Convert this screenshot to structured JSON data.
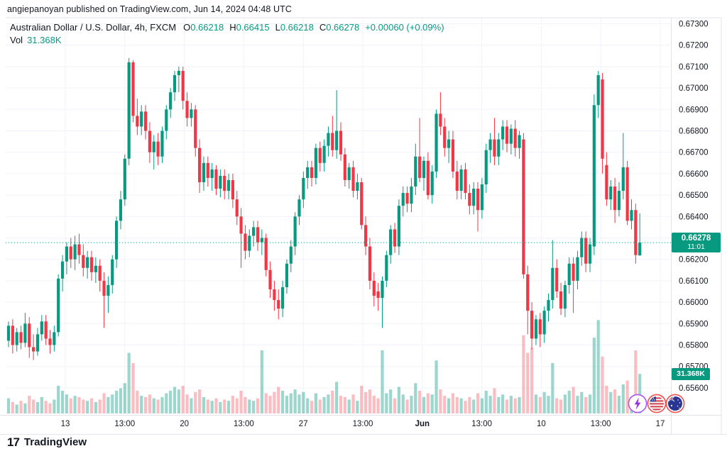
{
  "header": {
    "attribution": "angiepanoyan published on TradingView.com, Jun 14, 2024 04:48 UTC"
  },
  "legend": {
    "symbol": "Australian Dollar / U.S. Dollar, 4h, FXCM",
    "ohlc": [
      {
        "label": "O",
        "value": "0.66218"
      },
      {
        "label": "H",
        "value": "0.66415"
      },
      {
        "label": "L",
        "value": "0.66218"
      },
      {
        "label": "C",
        "value": "0.66278"
      }
    ],
    "change": "+0.00060 (+0.09%)",
    "vol_label": "Vol",
    "vol_value": "31.368K"
  },
  "price_label": {
    "price": "0.66278",
    "time": "11:01"
  },
  "volume_label": "31.368K",
  "footer": {
    "brand": "TradingView",
    "mark": "17"
  },
  "icons": {
    "event1": "lightning-icon",
    "event2": "us-flag-icon",
    "event3": "au-flag-icon"
  },
  "colors": {
    "up": "#089981",
    "down": "#f23645",
    "vol_up": "rgba(8,153,129,0.40)",
    "vol_down": "rgba(242,54,69,0.33)",
    "grid": "#f0f3fa",
    "frame": "#e0e3eb",
    "axis_text": "#131722",
    "label_bg": "#089981",
    "dotted_line": "#089981"
  },
  "chart_data": {
    "type": "candlestick+volume",
    "title": "Australian Dollar / U.S. Dollar",
    "interval": "4h",
    "exchange": "FXCM",
    "current_price": 0.66278,
    "current_time": "11:01",
    "current_volume": 31.368,
    "last": {
      "open": "0.66218",
      "high": "0.66415",
      "low": "0.66218",
      "close": "0.66278",
      "change": "+0.00060",
      "change_pct": "+0.09%",
      "volume": "31.368K"
    },
    "price_axis_ticks": [
      "0.67300",
      "0.67200",
      "0.67100",
      "0.67000",
      "0.66900",
      "0.66800",
      "0.66700",
      "0.66600",
      "0.66500",
      "0.66400",
      "0.66300",
      "0.66200",
      "0.66100",
      "0.66000",
      "0.65900",
      "0.65800",
      "0.65700",
      "0.65600"
    ],
    "time_axis_ticks": [
      "13",
      "13:00",
      "20",
      "13:00",
      "27",
      "13:00",
      "Jun",
      "13:00",
      "10",
      "13:00",
      "17"
    ],
    "ylim": [
      0.656,
      0.673
    ],
    "grid": true,
    "candles": [
      [
        0.6582,
        0.6591,
        0.6579,
        0.6589
      ],
      [
        0.6589,
        0.6592,
        0.6576,
        0.658
      ],
      [
        0.658,
        0.6588,
        0.6577,
        0.6586
      ],
      [
        0.6586,
        0.6589,
        0.6578,
        0.6581
      ],
      [
        0.6581,
        0.6595,
        0.6579,
        0.659
      ],
      [
        0.659,
        0.6593,
        0.6574,
        0.6579
      ],
      [
        0.6579,
        0.6585,
        0.6573,
        0.6577
      ],
      [
        0.6577,
        0.6588,
        0.6575,
        0.6585
      ],
      [
        0.6585,
        0.6594,
        0.6582,
        0.6591
      ],
      [
        0.6591,
        0.6594,
        0.658,
        0.6583
      ],
      [
        0.6583,
        0.6587,
        0.6576,
        0.658
      ],
      [
        0.658,
        0.6589,
        0.6577,
        0.6586
      ],
      [
        0.6586,
        0.6613,
        0.6584,
        0.6611
      ],
      [
        0.6611,
        0.6622,
        0.6605,
        0.6619
      ],
      [
        0.6619,
        0.6628,
        0.6613,
        0.6626
      ],
      [
        0.6626,
        0.663,
        0.6616,
        0.662
      ],
      [
        0.662,
        0.6631,
        0.6615,
        0.6627
      ],
      [
        0.6627,
        0.6632,
        0.6618,
        0.6622
      ],
      [
        0.6622,
        0.6627,
        0.6612,
        0.6616
      ],
      [
        0.6616,
        0.6624,
        0.6611,
        0.6621
      ],
      [
        0.6621,
        0.6624,
        0.661,
        0.6614
      ],
      [
        0.6614,
        0.6621,
        0.6609,
        0.6617
      ],
      [
        0.6617,
        0.662,
        0.6605,
        0.661
      ],
      [
        0.661,
        0.6614,
        0.6588,
        0.6603
      ],
      [
        0.6603,
        0.6612,
        0.6595,
        0.6608
      ],
      [
        0.6608,
        0.6622,
        0.6604,
        0.662
      ],
      [
        0.662,
        0.664,
        0.6616,
        0.6638
      ],
      [
        0.6638,
        0.6652,
        0.6634,
        0.6648
      ],
      [
        0.6648,
        0.6669,
        0.6645,
        0.6667
      ],
      [
        0.6667,
        0.6714,
        0.6664,
        0.6712
      ],
      [
        0.6712,
        0.6713,
        0.6684,
        0.6687
      ],
      [
        0.6687,
        0.6695,
        0.6678,
        0.6682
      ],
      [
        0.6682,
        0.6692,
        0.6678,
        0.6689
      ],
      [
        0.6689,
        0.6692,
        0.6676,
        0.668
      ],
      [
        0.668,
        0.6684,
        0.6665,
        0.667
      ],
      [
        0.667,
        0.6678,
        0.6662,
        0.6675
      ],
      [
        0.6675,
        0.6679,
        0.6664,
        0.6668
      ],
      [
        0.6668,
        0.6682,
        0.6665,
        0.668
      ],
      [
        0.668,
        0.6692,
        0.6676,
        0.669
      ],
      [
        0.669,
        0.67,
        0.6686,
        0.6698
      ],
      [
        0.6698,
        0.6708,
        0.6694,
        0.6706
      ],
      [
        0.6706,
        0.671,
        0.6698,
        0.6708
      ],
      [
        0.6708,
        0.671,
        0.669,
        0.6694
      ],
      [
        0.6694,
        0.6698,
        0.6682,
        0.6686
      ],
      [
        0.6686,
        0.6693,
        0.6682,
        0.669
      ],
      [
        0.669,
        0.6692,
        0.6668,
        0.6672
      ],
      [
        0.6672,
        0.6676,
        0.6651,
        0.6656
      ],
      [
        0.6656,
        0.6668,
        0.6652,
        0.6665
      ],
      [
        0.6665,
        0.6668,
        0.6654,
        0.6658
      ],
      [
        0.6658,
        0.6665,
        0.6652,
        0.6662
      ],
      [
        0.6662,
        0.6664,
        0.665,
        0.6653
      ],
      [
        0.6653,
        0.6662,
        0.6649,
        0.6659
      ],
      [
        0.6659,
        0.6662,
        0.6648,
        0.6652
      ],
      [
        0.6652,
        0.666,
        0.6648,
        0.6657
      ],
      [
        0.6657,
        0.666,
        0.6644,
        0.6648
      ],
      [
        0.6648,
        0.6652,
        0.6636,
        0.664
      ],
      [
        0.664,
        0.6644,
        0.6616,
        0.6632
      ],
      [
        0.6632,
        0.6636,
        0.662,
        0.6624
      ],
      [
        0.6624,
        0.6634,
        0.6621,
        0.6631
      ],
      [
        0.6631,
        0.6638,
        0.6626,
        0.6635
      ],
      [
        0.6635,
        0.6638,
        0.6624,
        0.6628
      ],
      [
        0.6628,
        0.6634,
        0.6622,
        0.663
      ],
      [
        0.663,
        0.6632,
        0.6612,
        0.6615
      ],
      [
        0.6615,
        0.6619,
        0.6602,
        0.6606
      ],
      [
        0.6606,
        0.661,
        0.6596,
        0.6601
      ],
      [
        0.6601,
        0.6606,
        0.6592,
        0.6597
      ],
      [
        0.6597,
        0.661,
        0.6593,
        0.6607
      ],
      [
        0.6607,
        0.662,
        0.6604,
        0.6618
      ],
      [
        0.6618,
        0.6629,
        0.6614,
        0.6626
      ],
      [
        0.6626,
        0.6642,
        0.6622,
        0.664
      ],
      [
        0.664,
        0.665,
        0.6636,
        0.6648
      ],
      [
        0.6648,
        0.6661,
        0.6644,
        0.6658
      ],
      [
        0.6658,
        0.6666,
        0.6653,
        0.6663
      ],
      [
        0.6663,
        0.6666,
        0.6654,
        0.6658
      ],
      [
        0.6658,
        0.6674,
        0.6655,
        0.6672
      ],
      [
        0.6672,
        0.6675,
        0.6661,
        0.6665
      ],
      [
        0.6665,
        0.6676,
        0.6661,
        0.6673
      ],
      [
        0.6673,
        0.6682,
        0.6668,
        0.6679
      ],
      [
        0.6679,
        0.6687,
        0.6668,
        0.6671
      ],
      [
        0.6671,
        0.6699,
        0.6667,
        0.668
      ],
      [
        0.668,
        0.6684,
        0.6666,
        0.6669
      ],
      [
        0.6669,
        0.6672,
        0.6654,
        0.6657
      ],
      [
        0.6657,
        0.6665,
        0.6653,
        0.6663
      ],
      [
        0.6663,
        0.6666,
        0.6649,
        0.6652
      ],
      [
        0.6652,
        0.666,
        0.6648,
        0.6656
      ],
      [
        0.6656,
        0.6658,
        0.6634,
        0.6636
      ],
      [
        0.6636,
        0.664,
        0.6622,
        0.6626
      ],
      [
        0.6626,
        0.663,
        0.6606,
        0.661
      ],
      [
        0.661,
        0.6614,
        0.6598,
        0.6603
      ],
      [
        0.6605,
        0.6609,
        0.6596,
        0.6602
      ],
      [
        0.6602,
        0.6612,
        0.6588,
        0.661
      ],
      [
        0.661,
        0.6624,
        0.6607,
        0.6622
      ],
      [
        0.6622,
        0.6636,
        0.6618,
        0.6634
      ],
      [
        0.6634,
        0.6637,
        0.6623,
        0.6626
      ],
      [
        0.6626,
        0.6648,
        0.6622,
        0.6645
      ],
      [
        0.6645,
        0.6654,
        0.664,
        0.6651
      ],
      [
        0.6651,
        0.6654,
        0.6642,
        0.6646
      ],
      [
        0.6646,
        0.6658,
        0.6642,
        0.6654
      ],
      [
        0.6654,
        0.6674,
        0.665,
        0.6668
      ],
      [
        0.6668,
        0.6686,
        0.6656,
        0.6658
      ],
      [
        0.6658,
        0.6668,
        0.6652,
        0.6666
      ],
      [
        0.6666,
        0.667,
        0.6648,
        0.665
      ],
      [
        0.665,
        0.6664,
        0.6646,
        0.6661
      ],
      [
        0.6661,
        0.669,
        0.6658,
        0.6688
      ],
      [
        0.6688,
        0.6698,
        0.6678,
        0.6682
      ],
      [
        0.6682,
        0.6686,
        0.6668,
        0.6672
      ],
      [
        0.6672,
        0.668,
        0.6665,
        0.6676
      ],
      [
        0.6676,
        0.668,
        0.6658,
        0.6661
      ],
      [
        0.6661,
        0.6666,
        0.6648,
        0.6652
      ],
      [
        0.6652,
        0.6664,
        0.6648,
        0.6662
      ],
      [
        0.6662,
        0.6665,
        0.6648,
        0.6651
      ],
      [
        0.6651,
        0.6655,
        0.6641,
        0.6645
      ],
      [
        0.6645,
        0.6656,
        0.6641,
        0.6653
      ],
      [
        0.6653,
        0.6656,
        0.6633,
        0.6643
      ],
      [
        0.6643,
        0.6658,
        0.6639,
        0.6655
      ],
      [
        0.6655,
        0.6674,
        0.6651,
        0.6671
      ],
      [
        0.6671,
        0.6679,
        0.6665,
        0.6676
      ],
      [
        0.6676,
        0.6686,
        0.6664,
        0.6668
      ],
      [
        0.6668,
        0.6679,
        0.6664,
        0.6676
      ],
      [
        0.6676,
        0.6685,
        0.6671,
        0.6682
      ],
      [
        0.6682,
        0.6685,
        0.667,
        0.6674
      ],
      [
        0.6674,
        0.6683,
        0.6669,
        0.6681
      ],
      [
        0.6681,
        0.6685,
        0.6668,
        0.6672
      ],
      [
        0.6672,
        0.668,
        0.6667,
        0.6678
      ],
      [
        0.6676,
        0.6679,
        0.6611,
        0.6613
      ],
      [
        0.6613,
        0.6617,
        0.6585,
        0.6596
      ],
      [
        0.6596,
        0.66,
        0.6578,
        0.6583
      ],
      [
        0.6583,
        0.6594,
        0.658,
        0.6592
      ],
      [
        0.6592,
        0.6595,
        0.6579,
        0.6585
      ],
      [
        0.6585,
        0.6598,
        0.6581,
        0.6596
      ],
      [
        0.6596,
        0.6604,
        0.6591,
        0.6601
      ],
      [
        0.6601,
        0.6629,
        0.6597,
        0.6616
      ],
      [
        0.6616,
        0.662,
        0.6602,
        0.6605
      ],
      [
        0.6605,
        0.6609,
        0.6594,
        0.6597
      ],
      [
        0.6597,
        0.661,
        0.6593,
        0.6608
      ],
      [
        0.6608,
        0.6621,
        0.6604,
        0.6618
      ],
      [
        0.6618,
        0.6621,
        0.6595,
        0.661
      ],
      [
        0.661,
        0.6624,
        0.6606,
        0.6621
      ],
      [
        0.6621,
        0.6633,
        0.6617,
        0.663
      ],
      [
        0.663,
        0.6633,
        0.6614,
        0.6618
      ],
      [
        0.6618,
        0.663,
        0.6614,
        0.6627
      ],
      [
        0.6626,
        0.6697,
        0.6622,
        0.6692
      ],
      [
        0.6692,
        0.6708,
        0.6686,
        0.6706
      ],
      [
        0.6704,
        0.6707,
        0.666,
        0.6667
      ],
      [
        0.6664,
        0.667,
        0.6645,
        0.6648
      ],
      [
        0.6648,
        0.6657,
        0.6643,
        0.6654
      ],
      [
        0.6654,
        0.6658,
        0.6637,
        0.6643
      ],
      [
        0.6643,
        0.6656,
        0.664,
        0.6652
      ],
      [
        0.6652,
        0.6679,
        0.6648,
        0.6663
      ],
      [
        0.6663,
        0.6666,
        0.6636,
        0.6638
      ],
      [
        0.6638,
        0.6648,
        0.6634,
        0.6643
      ],
      [
        0.6643,
        0.6646,
        0.6618,
        0.6622
      ],
      [
        0.66218,
        0.66415,
        0.66218,
        0.66278
      ]
    ],
    "volumes": [
      12,
      9,
      7,
      10,
      8,
      14,
      11,
      9,
      13,
      10,
      8,
      11,
      22,
      18,
      15,
      12,
      14,
      13,
      11,
      10,
      12,
      9,
      11,
      16,
      13,
      15,
      18,
      20,
      24,
      48,
      40,
      18,
      14,
      13,
      15,
      12,
      11,
      13,
      16,
      18,
      21,
      19,
      22,
      15,
      12,
      17,
      19,
      13,
      11,
      10,
      12,
      9,
      11,
      10,
      14,
      12,
      18,
      13,
      11,
      10,
      12,
      50,
      16,
      14,
      17,
      21,
      18,
      14,
      16,
      19,
      15,
      17,
      12,
      10,
      16,
      11,
      13,
      15,
      18,
      25,
      14,
      13,
      11,
      15,
      10,
      22,
      17,
      19,
      14,
      12,
      50,
      16,
      19,
      12,
      21,
      15,
      11,
      14,
      24,
      18,
      13,
      16,
      15,
      42,
      19,
      14,
      12,
      16,
      13,
      12,
      10,
      13,
      11,
      16,
      12,
      18,
      14,
      20,
      13,
      15,
      11,
      14,
      12,
      13,
      62,
      48,
      52,
      15,
      13,
      17,
      14,
      40,
      12,
      11,
      15,
      18,
      21,
      14,
      17,
      13,
      15,
      60,
      74,
      45,
      22,
      17,
      19,
      14,
      23,
      26,
      13,
      50,
      31.368
    ]
  }
}
